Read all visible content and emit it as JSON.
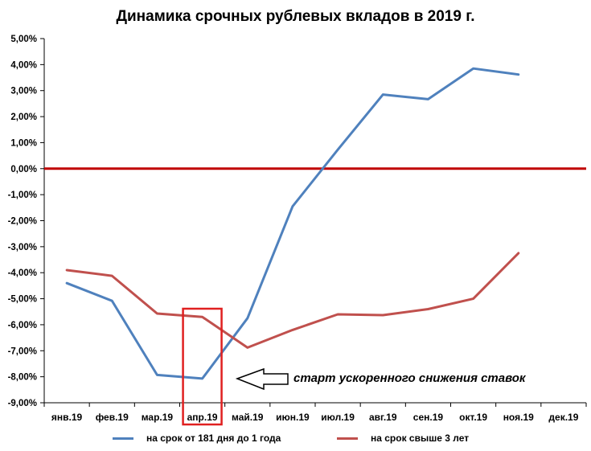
{
  "chart_data": {
    "type": "line",
    "title": "Динамика срочных рублевых вкладов в 2019 г.",
    "categories": [
      "янв.19",
      "фев.19",
      "мар.19",
      "апр.19",
      "май.19",
      "июн.19",
      "июл.19",
      "авг.19",
      "сен.19",
      "окт.19",
      "ноя.19",
      "дек.19"
    ],
    "y_ticks": [
      "5,00%",
      "4,00%",
      "3,00%",
      "2,00%",
      "1,00%",
      "0,00%",
      "-1,00%",
      "-2,00%",
      "-3,00%",
      "-4,00%",
      "-5,00%",
      "-6,00%",
      "-7,00%",
      "-8,00%",
      "-9,00%"
    ],
    "ylim": [
      -9,
      5
    ],
    "series": [
      {
        "name": "на срок от 181 дня до 1 года",
        "color": "#4f81bd",
        "values": [
          -4.4,
          -5.08,
          -7.93,
          -8.07,
          -5.75,
          -1.45,
          0.73,
          2.85,
          2.67,
          3.85,
          3.62,
          null
        ]
      },
      {
        "name": "на срок свыше 3 лет",
        "color": "#c0504d",
        "values": [
          -3.9,
          -4.12,
          -5.57,
          -5.7,
          -6.88,
          -6.2,
          -5.6,
          -5.63,
          -5.4,
          -5.0,
          -3.25,
          null
        ]
      }
    ],
    "zero_line_color": "#c00000",
    "highlight_box_color": "#e02020",
    "grid": false,
    "legend_position": "bottom",
    "annotation": "старт ускоренного снижения ставок"
  }
}
